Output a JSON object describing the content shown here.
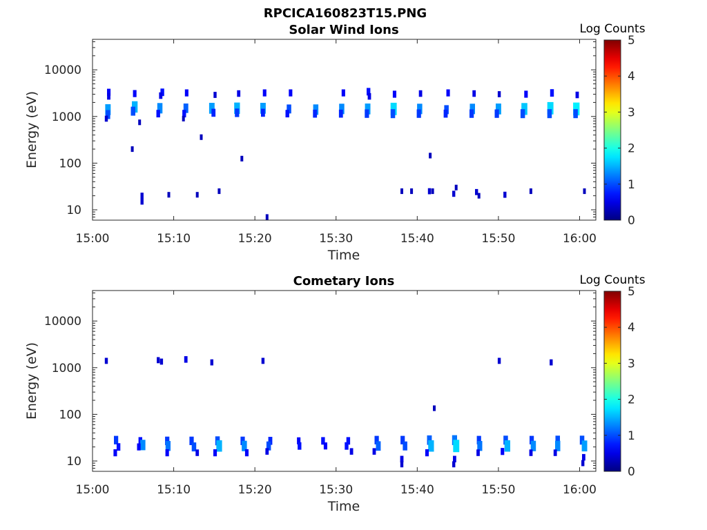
{
  "figure_title": "RPCICA160823T15.PNG",
  "colorbar": {
    "label": "Log Counts",
    "ticks": [
      "0",
      "1",
      "2",
      "3",
      "4",
      "5"
    ],
    "min": 0,
    "max": 5,
    "colormap": [
      "#00008f",
      "#0000ff",
      "#00ffff",
      "#ffff00",
      "#ff0000",
      "#800000"
    ]
  },
  "chart_data": [
    {
      "type": "heatmap",
      "title": "Solar Wind Ions",
      "xlabel": "Time",
      "ylabel": "Energy (eV)",
      "x_ticks": [
        "15:00",
        "15:10",
        "15:20",
        "15:30",
        "15:40",
        "15:50",
        "16:00"
      ],
      "y_ticks": [
        "10",
        "100",
        "1000",
        "10000"
      ],
      "y_scale": "log",
      "xlim_minutes": [
        0,
        62
      ],
      "ylim_eV": [
        6,
        45000
      ],
      "cells": [
        {
          "t": 1.9,
          "e": 1400,
          "v": 1.4
        },
        {
          "t": 1.9,
          "e": 1100,
          "v": 1.0
        },
        {
          "t": 1.7,
          "e": 900,
          "v": 0.4
        },
        {
          "t": 2.0,
          "e": 3300,
          "v": 0.6
        },
        {
          "t": 2.0,
          "e": 2700,
          "v": 0.5
        },
        {
          "t": 5.2,
          "e": 1600,
          "v": 1.5
        },
        {
          "t": 5.0,
          "e": 1300,
          "v": 1.0
        },
        {
          "t": 5.2,
          "e": 3100,
          "v": 0.6
        },
        {
          "t": 5.8,
          "e": 750,
          "v": 0.3
        },
        {
          "t": 8.3,
          "e": 1500,
          "v": 1.3
        },
        {
          "t": 8.1,
          "e": 1150,
          "v": 0.7
        },
        {
          "t": 8.6,
          "e": 3300,
          "v": 0.7
        },
        {
          "t": 8.4,
          "e": 2800,
          "v": 0.5
        },
        {
          "t": 11.5,
          "e": 1500,
          "v": 1.1
        },
        {
          "t": 11.3,
          "e": 1150,
          "v": 0.7
        },
        {
          "t": 11.6,
          "e": 3200,
          "v": 0.6
        },
        {
          "t": 11.2,
          "e": 900,
          "v": 0.3
        },
        {
          "t": 14.7,
          "e": 1500,
          "v": 1.4
        },
        {
          "t": 14.9,
          "e": 1200,
          "v": 0.8
        },
        {
          "t": 15.1,
          "e": 2900,
          "v": 0.4
        },
        {
          "t": 17.8,
          "e": 1500,
          "v": 1.5
        },
        {
          "t": 17.8,
          "e": 1200,
          "v": 0.9
        },
        {
          "t": 18.0,
          "e": 3100,
          "v": 0.5
        },
        {
          "t": 21.0,
          "e": 1500,
          "v": 1.4
        },
        {
          "t": 21.0,
          "e": 1200,
          "v": 0.8
        },
        {
          "t": 21.2,
          "e": 3200,
          "v": 0.6
        },
        {
          "t": 24.2,
          "e": 1450,
          "v": 1.0
        },
        {
          "t": 24.0,
          "e": 1150,
          "v": 0.7
        },
        {
          "t": 24.4,
          "e": 3200,
          "v": 0.6
        },
        {
          "t": 27.5,
          "e": 1400,
          "v": 1.3
        },
        {
          "t": 27.4,
          "e": 1150,
          "v": 0.8
        },
        {
          "t": 30.7,
          "e": 1450,
          "v": 1.3
        },
        {
          "t": 30.6,
          "e": 1150,
          "v": 0.8
        },
        {
          "t": 30.9,
          "e": 3200,
          "v": 0.6
        },
        {
          "t": 33.9,
          "e": 1450,
          "v": 1.4
        },
        {
          "t": 33.8,
          "e": 1150,
          "v": 0.9
        },
        {
          "t": 34.0,
          "e": 3400,
          "v": 0.7
        },
        {
          "t": 34.1,
          "e": 2700,
          "v": 0.5
        },
        {
          "t": 37.1,
          "e": 1450,
          "v": 1.7
        },
        {
          "t": 37.0,
          "e": 1150,
          "v": 1.0
        },
        {
          "t": 37.2,
          "e": 3000,
          "v": 0.6
        },
        {
          "t": 40.3,
          "e": 1450,
          "v": 1.3
        },
        {
          "t": 40.2,
          "e": 1150,
          "v": 0.9
        },
        {
          "t": 40.4,
          "e": 3100,
          "v": 0.5
        },
        {
          "t": 43.6,
          "e": 1400,
          "v": 1.0
        },
        {
          "t": 43.5,
          "e": 1150,
          "v": 0.8
        },
        {
          "t": 43.8,
          "e": 3200,
          "v": 0.6
        },
        {
          "t": 46.8,
          "e": 1450,
          "v": 1.3
        },
        {
          "t": 46.7,
          "e": 1150,
          "v": 0.9
        },
        {
          "t": 47.0,
          "e": 3100,
          "v": 0.5
        },
        {
          "t": 50.0,
          "e": 1450,
          "v": 1.4
        },
        {
          "t": 49.8,
          "e": 1150,
          "v": 0.9
        },
        {
          "t": 50.1,
          "e": 3000,
          "v": 0.4
        },
        {
          "t": 53.2,
          "e": 1450,
          "v": 1.6
        },
        {
          "t": 53.0,
          "e": 1150,
          "v": 1.0
        },
        {
          "t": 53.4,
          "e": 3000,
          "v": 0.6
        },
        {
          "t": 56.4,
          "e": 1500,
          "v": 1.7
        },
        {
          "t": 56.3,
          "e": 1150,
          "v": 1.0
        },
        {
          "t": 56.6,
          "e": 3200,
          "v": 0.7
        },
        {
          "t": 59.6,
          "e": 1450,
          "v": 1.8
        },
        {
          "t": 59.5,
          "e": 1150,
          "v": 1.0
        },
        {
          "t": 59.7,
          "e": 2900,
          "v": 0.5
        },
        {
          "t": 4.9,
          "e": 200,
          "v": 0.3
        },
        {
          "t": 13.4,
          "e": 360,
          "v": 0.3
        },
        {
          "t": 18.4,
          "e": 125,
          "v": 0.3
        },
        {
          "t": 41.6,
          "e": 145,
          "v": 0.3
        },
        {
          "t": 6.1,
          "e": 20,
          "v": 0.4
        },
        {
          "t": 6.1,
          "e": 15,
          "v": 0.4
        },
        {
          "t": 9.4,
          "e": 21,
          "v": 0.3
        },
        {
          "t": 12.9,
          "e": 21,
          "v": 0.3
        },
        {
          "t": 15.6,
          "e": 25,
          "v": 0.3
        },
        {
          "t": 21.5,
          "e": 7,
          "v": 0.3
        },
        {
          "t": 38.1,
          "e": 25,
          "v": 0.3
        },
        {
          "t": 39.3,
          "e": 25,
          "v": 0.3
        },
        {
          "t": 41.5,
          "e": 25,
          "v": 0.4
        },
        {
          "t": 41.9,
          "e": 25,
          "v": 0.3
        },
        {
          "t": 44.5,
          "e": 22,
          "v": 0.4
        },
        {
          "t": 44.8,
          "e": 30,
          "v": 0.3
        },
        {
          "t": 47.3,
          "e": 24,
          "v": 0.4
        },
        {
          "t": 47.6,
          "e": 20,
          "v": 0.3
        },
        {
          "t": 50.8,
          "e": 21,
          "v": 0.4
        },
        {
          "t": 54.0,
          "e": 25,
          "v": 0.3
        },
        {
          "t": 60.6,
          "e": 25,
          "v": 0.3
        }
      ]
    },
    {
      "type": "heatmap",
      "title": "Cometary Ions",
      "xlabel": "Time",
      "ylabel": "Energy (eV)",
      "x_ticks": [
        "15:00",
        "15:10",
        "15:20",
        "15:30",
        "15:40",
        "15:50",
        "16:00"
      ],
      "y_ticks": [
        "10",
        "100",
        "1000",
        "10000"
      ],
      "y_scale": "log",
      "xlim_minutes": [
        0,
        62
      ],
      "ylim_eV": [
        6,
        45000
      ],
      "cells": [
        {
          "t": 1.7,
          "e": 1400,
          "v": 0.4
        },
        {
          "t": 8.1,
          "e": 1450,
          "v": 0.4
        },
        {
          "t": 8.5,
          "e": 1350,
          "v": 0.4
        },
        {
          "t": 11.5,
          "e": 1500,
          "v": 0.5
        },
        {
          "t": 14.7,
          "e": 1300,
          "v": 0.4
        },
        {
          "t": 21.0,
          "e": 1400,
          "v": 0.4
        },
        {
          "t": 50.1,
          "e": 1400,
          "v": 0.4
        },
        {
          "t": 56.5,
          "e": 1300,
          "v": 0.4
        },
        {
          "t": 42.1,
          "e": 135,
          "v": 0.3
        },
        {
          "t": 2.9,
          "e": 28,
          "v": 0.9
        },
        {
          "t": 3.2,
          "e": 20,
          "v": 0.7
        },
        {
          "t": 2.8,
          "e": 15,
          "v": 0.6
        },
        {
          "t": 5.9,
          "e": 27,
          "v": 0.7
        },
        {
          "t": 6.2,
          "e": 22,
          "v": 1.3
        },
        {
          "t": 5.7,
          "e": 20,
          "v": 0.6
        },
        {
          "t": 9.2,
          "e": 27,
          "v": 0.9
        },
        {
          "t": 9.3,
          "e": 21,
          "v": 1.2
        },
        {
          "t": 9.2,
          "e": 15,
          "v": 0.6
        },
        {
          "t": 12.2,
          "e": 27,
          "v": 0.9
        },
        {
          "t": 12.5,
          "e": 20,
          "v": 1.0
        },
        {
          "t": 12.9,
          "e": 15,
          "v": 0.5
        },
        {
          "t": 15.4,
          "e": 27,
          "v": 1.0
        },
        {
          "t": 15.6,
          "e": 21,
          "v": 1.5
        },
        {
          "t": 15.1,
          "e": 15,
          "v": 0.6
        },
        {
          "t": 18.5,
          "e": 27,
          "v": 0.9
        },
        {
          "t": 18.7,
          "e": 21,
          "v": 1.3
        },
        {
          "t": 19.0,
          "e": 15,
          "v": 0.6
        },
        {
          "t": 21.9,
          "e": 27,
          "v": 0.8
        },
        {
          "t": 21.7,
          "e": 21,
          "v": 1.0
        },
        {
          "t": 21.5,
          "e": 16,
          "v": 0.5
        },
        {
          "t": 25.4,
          "e": 27,
          "v": 0.6
        },
        {
          "t": 25.5,
          "e": 21,
          "v": 0.7
        },
        {
          "t": 28.4,
          "e": 27,
          "v": 0.7
        },
        {
          "t": 28.7,
          "e": 21,
          "v": 0.6
        },
        {
          "t": 31.5,
          "e": 27,
          "v": 0.7
        },
        {
          "t": 31.3,
          "e": 21,
          "v": 0.7
        },
        {
          "t": 31.9,
          "e": 16,
          "v": 0.5
        },
        {
          "t": 35.0,
          "e": 28,
          "v": 0.9
        },
        {
          "t": 35.2,
          "e": 21,
          "v": 1.1
        },
        {
          "t": 34.7,
          "e": 16,
          "v": 0.5
        },
        {
          "t": 38.2,
          "e": 28,
          "v": 0.9
        },
        {
          "t": 38.5,
          "e": 21,
          "v": 1.0
        },
        {
          "t": 38.1,
          "e": 11,
          "v": 0.5
        },
        {
          "t": 38.1,
          "e": 8.5,
          "v": 0.4
        },
        {
          "t": 41.5,
          "e": 28,
          "v": 1.1
        },
        {
          "t": 41.7,
          "e": 21,
          "v": 1.5
        },
        {
          "t": 41.2,
          "e": 15,
          "v": 0.6
        },
        {
          "t": 44.6,
          "e": 28,
          "v": 1.2
        },
        {
          "t": 44.8,
          "e": 21,
          "v": 1.7
        },
        {
          "t": 44.6,
          "e": 11,
          "v": 0.5
        },
        {
          "t": 44.5,
          "e": 8.5,
          "v": 0.4
        },
        {
          "t": 47.6,
          "e": 28,
          "v": 0.9
        },
        {
          "t": 47.7,
          "e": 21,
          "v": 1.2
        },
        {
          "t": 47.5,
          "e": 15,
          "v": 0.5
        },
        {
          "t": 50.9,
          "e": 28,
          "v": 1.0
        },
        {
          "t": 51.1,
          "e": 21,
          "v": 1.5
        },
        {
          "t": 50.5,
          "e": 16,
          "v": 0.6
        },
        {
          "t": 54.1,
          "e": 28,
          "v": 0.9
        },
        {
          "t": 54.3,
          "e": 21,
          "v": 1.3
        },
        {
          "t": 54.0,
          "e": 15,
          "v": 0.5
        },
        {
          "t": 57.3,
          "e": 28,
          "v": 1.0
        },
        {
          "t": 57.3,
          "e": 21,
          "v": 1.3
        },
        {
          "t": 57.0,
          "e": 15,
          "v": 0.5
        },
        {
          "t": 60.3,
          "e": 28,
          "v": 1.0
        },
        {
          "t": 60.6,
          "e": 21,
          "v": 1.4
        },
        {
          "t": 60.5,
          "e": 12,
          "v": 0.5
        },
        {
          "t": 60.4,
          "e": 9,
          "v": 0.4
        }
      ]
    }
  ]
}
